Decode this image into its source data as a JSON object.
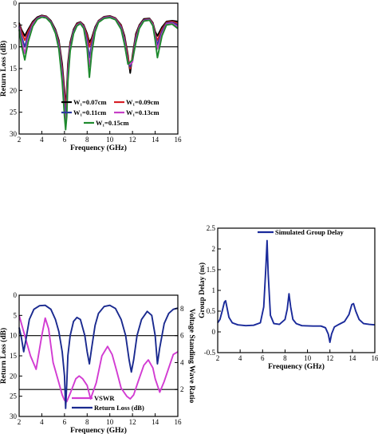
{
  "chart_data": [
    {
      "type": "line",
      "xlabel": "Frequency (GHz)",
      "ylabel": "Return Loss (dB)",
      "xlim": [
        2,
        16
      ],
      "ylim": [
        0,
        30
      ],
      "y_inverted": true,
      "xticks": [
        2,
        4,
        6,
        8,
        10,
        12,
        14,
        16
      ],
      "yticks": [
        0,
        5,
        10,
        15,
        20,
        25,
        30
      ],
      "hline": 10,
      "legend_placement": "bottom-center",
      "series": [
        {
          "name": "W₁=0.07cm",
          "color": "#000000",
          "x": [
            2.0,
            2.2,
            2.5,
            2.8,
            3.2,
            3.6,
            4.0,
            4.4,
            4.8,
            5.2,
            5.5,
            5.8,
            6.0,
            6.1,
            6.2,
            6.3,
            6.5,
            6.8,
            7.1,
            7.4,
            7.7,
            8.0,
            8.2,
            8.4,
            8.7,
            9.0,
            9.5,
            10.0,
            10.5,
            11.0,
            11.3,
            11.6,
            11.8,
            12.0,
            12.3,
            12.6,
            13.0,
            13.5,
            13.8,
            14.0,
            14.2,
            14.6,
            15.0,
            15.5,
            16.0
          ],
          "y": [
            4.5,
            6.0,
            7.5,
            6.0,
            4.2,
            3.2,
            2.8,
            3.0,
            4.0,
            6.0,
            8.5,
            14.0,
            20.0,
            24.0,
            20.0,
            14.0,
            9.0,
            6.0,
            4.6,
            4.3,
            5.0,
            7.0,
            9.0,
            8.0,
            5.5,
            4.0,
            3.1,
            2.9,
            3.4,
            5.0,
            7.5,
            12.0,
            16.0,
            12.0,
            7.0,
            5.0,
            3.6,
            3.5,
            4.5,
            6.5,
            7.5,
            5.5,
            4.2,
            4.0,
            4.2
          ]
        },
        {
          "name": "W₁=0.09cm",
          "color": "#d81f26",
          "x": [
            2.0,
            2.2,
            2.5,
            2.8,
            3.2,
            3.6,
            4.0,
            4.4,
            4.8,
            5.2,
            5.5,
            5.8,
            6.0,
            6.1,
            6.2,
            6.3,
            6.5,
            6.8,
            7.1,
            7.4,
            7.7,
            8.0,
            8.2,
            8.4,
            8.7,
            9.0,
            9.5,
            10.0,
            10.5,
            11.0,
            11.3,
            11.6,
            11.8,
            12.0,
            12.3,
            12.6,
            13.0,
            13.5,
            13.8,
            14.0,
            14.2,
            14.6,
            15.0,
            15.5,
            16.0
          ],
          "y": [
            4.8,
            6.5,
            8.5,
            6.5,
            4.5,
            3.4,
            2.9,
            3.1,
            4.2,
            6.3,
            9.0,
            15.0,
            21.0,
            25.0,
            21.0,
            15.0,
            9.5,
            6.3,
            4.8,
            4.4,
            5.2,
            7.5,
            10.0,
            8.5,
            5.8,
            4.1,
            3.2,
            3.0,
            3.5,
            5.2,
            8.0,
            12.5,
            15.0,
            12.5,
            7.5,
            5.2,
            3.8,
            3.6,
            4.7,
            7.0,
            8.5,
            6.0,
            4.4,
            4.2,
            4.6
          ]
        },
        {
          "name": "W₁=0.11cm",
          "color": "#2b3a9e",
          "x": [
            2.0,
            2.2,
            2.5,
            2.8,
            3.2,
            3.6,
            4.0,
            4.4,
            4.8,
            5.2,
            5.5,
            5.8,
            6.0,
            6.1,
            6.2,
            6.3,
            6.5,
            6.8,
            7.1,
            7.4,
            7.7,
            8.0,
            8.2,
            8.4,
            8.7,
            9.0,
            9.5,
            10.0,
            10.5,
            11.0,
            11.3,
            11.6,
            11.8,
            12.0,
            12.3,
            12.6,
            13.0,
            13.5,
            13.8,
            14.0,
            14.2,
            14.6,
            15.0,
            15.5,
            16.0
          ],
          "y": [
            5.2,
            7.5,
            10.0,
            7.2,
            4.8,
            3.5,
            3.0,
            3.2,
            4.3,
            6.5,
            9.5,
            16.0,
            23.0,
            27.0,
            23.0,
            16.0,
            10.0,
            6.5,
            5.0,
            4.5,
            5.4,
            8.5,
            12.5,
            9.5,
            6.0,
            4.2,
            3.3,
            3.1,
            3.6,
            5.5,
            8.5,
            13.5,
            14.5,
            13.0,
            8.0,
            5.4,
            3.9,
            3.7,
            4.9,
            7.5,
            9.5,
            6.5,
            4.6,
            4.4,
            5.0
          ]
        },
        {
          "name": "W₁=0.13cm",
          "color": "#c63fc6",
          "x": [
            2.0,
            2.2,
            2.5,
            2.8,
            3.2,
            3.6,
            4.0,
            4.4,
            4.8,
            5.2,
            5.5,
            5.8,
            6.0,
            6.1,
            6.2,
            6.3,
            6.5,
            6.8,
            7.1,
            7.4,
            7.7,
            8.0,
            8.2,
            8.4,
            8.7,
            9.0,
            9.5,
            10.0,
            10.5,
            11.0,
            11.3,
            11.6,
            11.8,
            12.0,
            12.3,
            12.6,
            13.0,
            13.5,
            13.8,
            14.0,
            14.2,
            14.6,
            15.0,
            15.5,
            16.0
          ],
          "y": [
            5.5,
            8.5,
            11.5,
            8.0,
            5.0,
            3.6,
            3.1,
            3.3,
            4.4,
            6.7,
            10.0,
            17.0,
            24.5,
            28.0,
            24.5,
            17.0,
            10.5,
            6.8,
            5.1,
            4.6,
            5.6,
            9.5,
            14.5,
            10.5,
            6.3,
            4.3,
            3.4,
            3.2,
            3.7,
            5.8,
            9.0,
            14.0,
            14.0,
            13.5,
            8.5,
            5.6,
            4.0,
            3.8,
            5.0,
            8.0,
            10.5,
            7.0,
            4.8,
            4.6,
            5.4
          ]
        },
        {
          "name": "W₁=0.15cm",
          "color": "#1e8a2e",
          "x": [
            2.0,
            2.2,
            2.5,
            2.8,
            3.2,
            3.6,
            4.0,
            4.4,
            4.8,
            5.2,
            5.5,
            5.8,
            6.0,
            6.1,
            6.2,
            6.3,
            6.5,
            6.8,
            7.1,
            7.4,
            7.7,
            8.0,
            8.2,
            8.4,
            8.7,
            9.0,
            9.5,
            10.0,
            10.5,
            11.0,
            11.3,
            11.6,
            11.8,
            12.0,
            12.3,
            12.6,
            13.0,
            13.5,
            13.8,
            14.0,
            14.2,
            14.6,
            15.0,
            15.5,
            16.0
          ],
          "y": [
            6.0,
            9.5,
            13.0,
            8.8,
            5.3,
            3.7,
            3.2,
            3.4,
            4.5,
            6.9,
            10.5,
            18.0,
            26.0,
            29.0,
            26.0,
            18.0,
            11.0,
            7.0,
            5.2,
            4.7,
            5.8,
            10.5,
            17.0,
            11.5,
            6.6,
            4.4,
            3.5,
            3.3,
            3.8,
            6.0,
            9.5,
            14.0,
            13.5,
            13.0,
            9.0,
            5.8,
            4.1,
            3.9,
            5.2,
            8.5,
            12.5,
            7.5,
            5.0,
            4.8,
            5.8
          ]
        }
      ]
    },
    {
      "type": "line",
      "xlabel": "Frequency (GHz)",
      "ylabel": "Return Loss (dB)",
      "y2label": "Voltage Standing Wave Ratio",
      "xlim": [
        2,
        16
      ],
      "ylim": [
        0,
        30
      ],
      "y_inverted": true,
      "y2lim": [
        0,
        9
      ],
      "xticks": [
        2,
        4,
        6,
        8,
        10,
        12,
        14,
        16
      ],
      "yticks": [
        0,
        5,
        10,
        15,
        20,
        25,
        30
      ],
      "y2ticks": [
        2,
        4,
        6,
        8
      ],
      "hlines_y2": [
        2,
        6
      ],
      "legend_placement": "bottom-right",
      "series": [
        {
          "name": "VSWR",
          "axis": "y2",
          "color": "#d23bd2",
          "x": [
            2.0,
            2.5,
            3.0,
            3.5,
            4.0,
            4.3,
            4.6,
            5.0,
            5.5,
            5.8,
            6.0,
            6.2,
            6.5,
            7.0,
            7.3,
            7.6,
            8.0,
            8.3,
            8.8,
            9.3,
            9.8,
            10.2,
            10.6,
            11.0,
            11.5,
            11.8,
            12.1,
            12.5,
            13.0,
            13.4,
            13.8,
            14.0,
            14.4,
            14.8,
            15.2,
            15.6,
            16.0
          ],
          "y": [
            7.5,
            6.0,
            4.5,
            3.5,
            6.0,
            7.3,
            6.5,
            4.0,
            2.5,
            1.6,
            1.2,
            1.1,
            1.7,
            2.8,
            3.0,
            2.8,
            2.3,
            1.3,
            2.5,
            4.5,
            5.2,
            4.6,
            3.4,
            2.1,
            1.5,
            1.3,
            1.6,
            2.6,
            3.8,
            4.2,
            3.6,
            2.8,
            1.8,
            2.6,
            3.6,
            4.6,
            4.8
          ]
        },
        {
          "name": "Return Loss (dB)",
          "axis": "y",
          "color": "#1a2a8f",
          "x": [
            2.0,
            2.2,
            2.4,
            2.6,
            2.9,
            3.3,
            3.8,
            4.3,
            4.8,
            5.2,
            5.5,
            5.8,
            6.0,
            6.1,
            6.2,
            6.3,
            6.5,
            6.8,
            7.1,
            7.4,
            7.8,
            8.0,
            8.2,
            8.4,
            8.7,
            9.0,
            9.5,
            10.0,
            10.5,
            11.0,
            11.4,
            11.7,
            11.9,
            12.1,
            12.4,
            12.8,
            13.3,
            13.7,
            14.0,
            14.2,
            14.4,
            14.8,
            15.2,
            15.6,
            16.0
          ],
          "y": [
            8.0,
            10.5,
            14.0,
            11.0,
            6.0,
            3.5,
            2.6,
            2.5,
            3.5,
            6.0,
            9.0,
            14.0,
            20.0,
            28.0,
            22.0,
            15.0,
            10.0,
            6.5,
            5.5,
            6.0,
            10.0,
            14.0,
            17.0,
            13.0,
            7.5,
            4.5,
            2.8,
            2.5,
            3.3,
            6.0,
            10.0,
            16.0,
            19.0,
            16.0,
            10.0,
            6.0,
            4.0,
            5.0,
            10.0,
            17.0,
            13.0,
            7.0,
            4.5,
            3.5,
            3.2
          ]
        }
      ]
    },
    {
      "type": "line",
      "xlabel": "Frequency (GHz)",
      "ylabel": "Group Delay (ns)",
      "xlim": [
        2,
        16
      ],
      "ylim": [
        -0.5,
        2.5
      ],
      "xticks": [
        2,
        4,
        6,
        8,
        10,
        12,
        14,
        16
      ],
      "yticks": [
        -0.5,
        0.0,
        0.5,
        1.0,
        1.5,
        2.0,
        2.5
      ],
      "legend_placement": "top-right",
      "series": [
        {
          "name": "Simulated Group Delay",
          "color": "#1a2a9a",
          "x": [
            2.0,
            2.2,
            2.4,
            2.6,
            2.7,
            2.8,
            3.0,
            3.3,
            3.8,
            4.5,
            5.2,
            5.8,
            6.1,
            6.3,
            6.4,
            6.5,
            6.7,
            7.0,
            7.5,
            8.0,
            8.2,
            8.35,
            8.5,
            8.7,
            9.0,
            9.5,
            10.5,
            11.2,
            11.6,
            11.85,
            12.0,
            12.15,
            12.4,
            12.8,
            13.3,
            13.7,
            13.95,
            14.1,
            14.3,
            14.6,
            15.0,
            15.5,
            16.0
          ],
          "y": [
            0.22,
            0.3,
            0.5,
            0.72,
            0.75,
            0.62,
            0.35,
            0.22,
            0.17,
            0.15,
            0.16,
            0.22,
            0.6,
            1.6,
            2.2,
            1.4,
            0.4,
            0.2,
            0.18,
            0.3,
            0.55,
            0.92,
            0.6,
            0.3,
            0.2,
            0.15,
            0.14,
            0.14,
            0.1,
            -0.05,
            -0.25,
            -0.05,
            0.12,
            0.18,
            0.25,
            0.42,
            0.66,
            0.68,
            0.5,
            0.3,
            0.2,
            0.18,
            0.17
          ]
        }
      ]
    }
  ]
}
